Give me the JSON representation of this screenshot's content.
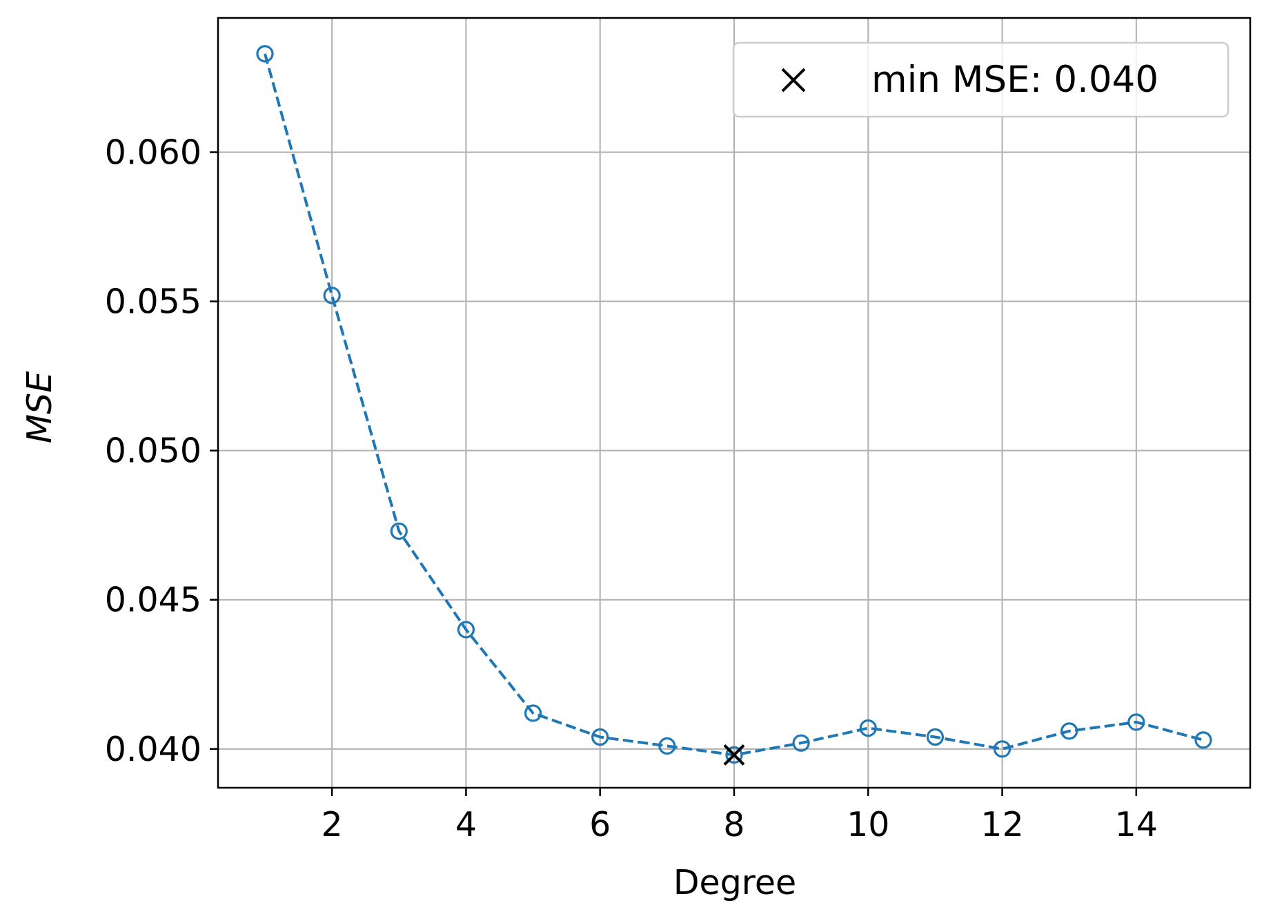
{
  "chart_data": {
    "type": "line",
    "title": "",
    "xlabel": "Degree",
    "ylabel": "MSE",
    "xlim": [
      0.3,
      15.7
    ],
    "ylim": [
      0.0387,
      0.0645
    ],
    "xticks": [
      2,
      4,
      6,
      8,
      10,
      12,
      14
    ],
    "xtick_labels": [
      "2",
      "4",
      "6",
      "8",
      "10",
      "12",
      "14"
    ],
    "yticks": [
      0.04,
      0.045,
      0.05,
      0.055,
      0.06
    ],
    "ytick_labels": [
      "0.040",
      "0.045",
      "0.050",
      "0.055",
      "0.060"
    ],
    "grid": true,
    "legend_position": "top-right",
    "series": [
      {
        "style": "dashed line with hollow circle markers",
        "color": "#1f77b4",
        "x": [
          1,
          2,
          3,
          4,
          5,
          6,
          7,
          8,
          9,
          10,
          11,
          12,
          13,
          14,
          15
        ],
        "y": [
          0.0633,
          0.0552,
          0.0473,
          0.044,
          0.0412,
          0.0404,
          0.0401,
          0.0398,
          0.0402,
          0.0407,
          0.0404,
          0.04,
          0.0406,
          0.0409,
          0.0403
        ]
      }
    ],
    "min_marker": {
      "x": 8,
      "y": 0.0398,
      "color": "#000000",
      "marker": "x",
      "label": "min MSE: 0.040"
    }
  }
}
